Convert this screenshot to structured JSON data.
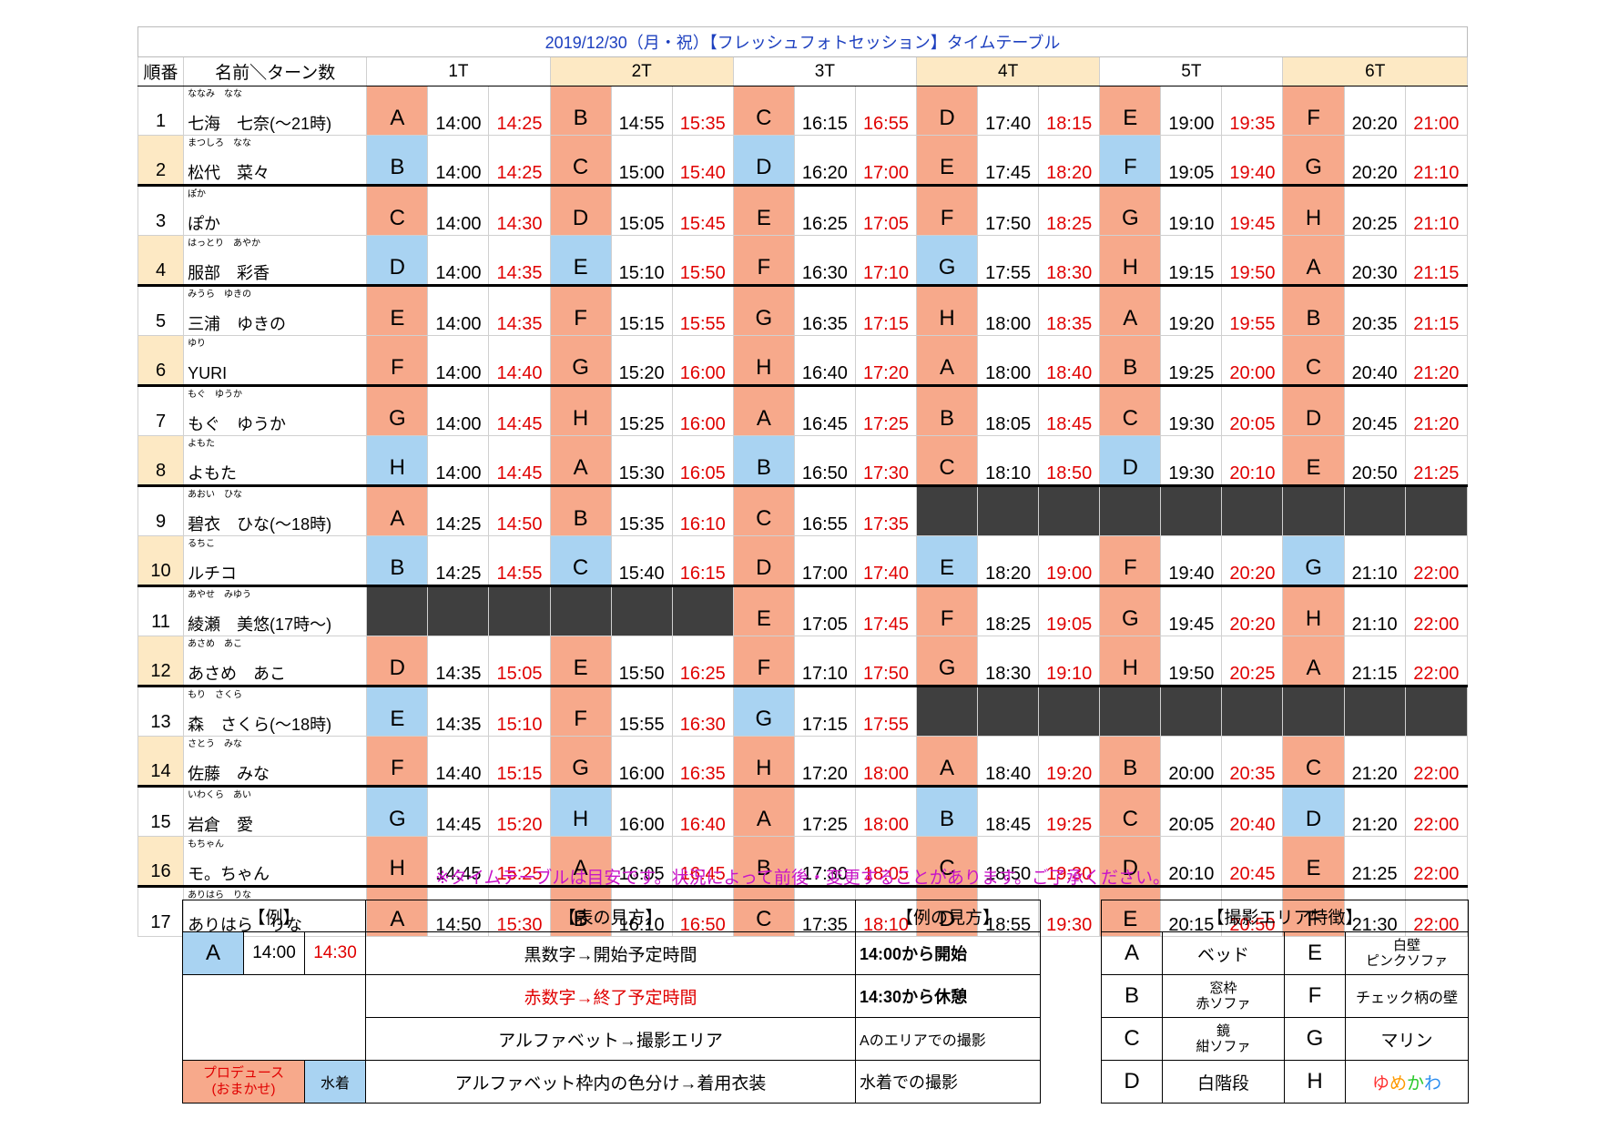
{
  "title": "2019/12/30（月・祝）【フレッシュフォトセッション】タイムテーブル",
  "header": {
    "no_label": "順番",
    "name_label": "名前＼ターン数",
    "turns": [
      "1T",
      "2T",
      "3T",
      "4T",
      "5T",
      "6T"
    ]
  },
  "colors": {
    "produce": "#f7a98b",
    "swim": "#a9d3f2",
    "blank": "#3f3f3f",
    "end_time": "#e00000",
    "title": "#1c3fbf",
    "note": "#c814c8",
    "turn_highlight": "#fde9c4"
  },
  "performers": [
    {
      "no": "1",
      "ruby": "ななみ　なな",
      "name": "七海　七奈(～21時)",
      "turns": [
        [
          "A",
          "p",
          "14:00",
          "14:25"
        ],
        [
          "B",
          "p",
          "14:55",
          "15:35"
        ],
        [
          "C",
          "p",
          "16:15",
          "16:55"
        ],
        [
          "D",
          "p",
          "17:40",
          "18:15"
        ],
        [
          "E",
          "p",
          "19:00",
          "19:35"
        ],
        [
          "F",
          "p",
          "20:20",
          "21:00"
        ]
      ]
    },
    {
      "no": "2",
      "ruby": "まつしろ　なな",
      "name": "松代　菜々",
      "turns": [
        [
          "B",
          "s",
          "14:00",
          "14:25"
        ],
        [
          "C",
          "p",
          "15:00",
          "15:40"
        ],
        [
          "D",
          "s",
          "16:20",
          "17:00"
        ],
        [
          "E",
          "p",
          "17:45",
          "18:20"
        ],
        [
          "F",
          "s",
          "19:05",
          "19:40"
        ],
        [
          "G",
          "p",
          "20:20",
          "21:10"
        ]
      ]
    },
    {
      "no": "3",
      "ruby": "ぽか",
      "name": "ぽか",
      "turns": [
        [
          "C",
          "p",
          "14:00",
          "14:30"
        ],
        [
          "D",
          "p",
          "15:05",
          "15:45"
        ],
        [
          "E",
          "p",
          "16:25",
          "17:05"
        ],
        [
          "F",
          "p",
          "17:50",
          "18:25"
        ],
        [
          "G",
          "p",
          "19:10",
          "19:45"
        ],
        [
          "H",
          "p",
          "20:25",
          "21:10"
        ]
      ]
    },
    {
      "no": "4",
      "ruby": "はっとり　あやか",
      "name": "服部　彩香",
      "turns": [
        [
          "D",
          "s",
          "14:00",
          "14:35"
        ],
        [
          "E",
          "s",
          "15:10",
          "15:50"
        ],
        [
          "F",
          "p",
          "16:30",
          "17:10"
        ],
        [
          "G",
          "s",
          "17:55",
          "18:30"
        ],
        [
          "H",
          "p",
          "19:15",
          "19:50"
        ],
        [
          "A",
          "p",
          "20:30",
          "21:15"
        ]
      ]
    },
    {
      "no": "5",
      "ruby": "みうら　ゆきの",
      "name": "三浦　ゆきの",
      "turns": [
        [
          "E",
          "p",
          "14:00",
          "14:35"
        ],
        [
          "F",
          "p",
          "15:15",
          "15:55"
        ],
        [
          "G",
          "p",
          "16:35",
          "17:15"
        ],
        [
          "H",
          "p",
          "18:00",
          "18:35"
        ],
        [
          "A",
          "p",
          "19:20",
          "19:55"
        ],
        [
          "B",
          "p",
          "20:35",
          "21:15"
        ]
      ]
    },
    {
      "no": "6",
      "ruby": "ゆり",
      "name": "YURI",
      "turns": [
        [
          "F",
          "p",
          "14:00",
          "14:40"
        ],
        [
          "G",
          "p",
          "15:20",
          "16:00"
        ],
        [
          "H",
          "p",
          "16:40",
          "17:20"
        ],
        [
          "A",
          "p",
          "18:00",
          "18:40"
        ],
        [
          "B",
          "p",
          "19:25",
          "20:00"
        ],
        [
          "C",
          "p",
          "20:40",
          "21:20"
        ]
      ]
    },
    {
      "no": "7",
      "ruby": "もぐ　ゆうか",
      "name": "もぐ　ゆうか",
      "turns": [
        [
          "G",
          "p",
          "14:00",
          "14:45"
        ],
        [
          "H",
          "p",
          "15:25",
          "16:00"
        ],
        [
          "A",
          "p",
          "16:45",
          "17:25"
        ],
        [
          "B",
          "p",
          "18:05",
          "18:45"
        ],
        [
          "C",
          "p",
          "19:30",
          "20:05"
        ],
        [
          "D",
          "p",
          "20:45",
          "21:20"
        ]
      ]
    },
    {
      "no": "8",
      "ruby": "よもた",
      "name": "よもた",
      "turns": [
        [
          "H",
          "s",
          "14:00",
          "14:45"
        ],
        [
          "A",
          "p",
          "15:30",
          "16:05"
        ],
        [
          "B",
          "s",
          "16:50",
          "17:30"
        ],
        [
          "C",
          "p",
          "18:10",
          "18:50"
        ],
        [
          "D",
          "s",
          "19:30",
          "20:10"
        ],
        [
          "E",
          "p",
          "20:50",
          "21:25"
        ]
      ]
    },
    {
      "no": "9",
      "ruby": "あおい　ひな",
      "name": "碧衣　ひな(～18時)",
      "turns": [
        [
          "A",
          "p",
          "14:25",
          "14:50"
        ],
        [
          "B",
          "p",
          "15:35",
          "16:10"
        ],
        [
          "C",
          "p",
          "16:55",
          "17:35"
        ],
        null,
        null,
        null
      ]
    },
    {
      "no": "10",
      "ruby": "るちこ",
      "name": "ルチコ",
      "turns": [
        [
          "B",
          "s",
          "14:25",
          "14:55"
        ],
        [
          "C",
          "s",
          "15:40",
          "16:15"
        ],
        [
          "D",
          "p",
          "17:00",
          "17:40"
        ],
        [
          "E",
          "s",
          "18:20",
          "19:00"
        ],
        [
          "F",
          "p",
          "19:40",
          "20:20"
        ],
        [
          "G",
          "s",
          "21:10",
          "22:00"
        ]
      ]
    },
    {
      "no": "11",
      "ruby": "あやせ　みゆう",
      "name": "綾瀬　美悠(17時～)",
      "turns": [
        null,
        null,
        [
          "E",
          "p",
          "17:05",
          "17:45"
        ],
        [
          "F",
          "p",
          "18:25",
          "19:05"
        ],
        [
          "G",
          "p",
          "19:45",
          "20:20"
        ],
        [
          "H",
          "p",
          "21:10",
          "22:00"
        ]
      ]
    },
    {
      "no": "12",
      "ruby": "あさめ　あこ",
      "name": "あさめ　あこ",
      "turns": [
        [
          "D",
          "p",
          "14:35",
          "15:05"
        ],
        [
          "E",
          "p",
          "15:50",
          "16:25"
        ],
        [
          "F",
          "p",
          "17:10",
          "17:50"
        ],
        [
          "G",
          "p",
          "18:30",
          "19:10"
        ],
        [
          "H",
          "p",
          "19:50",
          "20:25"
        ],
        [
          "A",
          "p",
          "21:15",
          "22:00"
        ]
      ]
    },
    {
      "no": "13",
      "ruby": "もり　さくら",
      "name": "森　さくら(～18時)",
      "turns": [
        [
          "E",
          "s",
          "14:35",
          "15:10"
        ],
        [
          "F",
          "p",
          "15:55",
          "16:30"
        ],
        [
          "G",
          "s",
          "17:15",
          "17:55"
        ],
        null,
        null,
        null
      ]
    },
    {
      "no": "14",
      "ruby": "さとう　みな",
      "name": "佐藤　みな",
      "turns": [
        [
          "F",
          "p",
          "14:40",
          "15:15"
        ],
        [
          "G",
          "p",
          "16:00",
          "16:35"
        ],
        [
          "H",
          "p",
          "17:20",
          "18:00"
        ],
        [
          "A",
          "p",
          "18:40",
          "19:20"
        ],
        [
          "B",
          "p",
          "20:00",
          "20:35"
        ],
        [
          "C",
          "p",
          "21:20",
          "22:00"
        ]
      ]
    },
    {
      "no": "15",
      "ruby": "いわくら　あい",
      "name": "岩倉　愛",
      "turns": [
        [
          "G",
          "s",
          "14:45",
          "15:20"
        ],
        [
          "H",
          "s",
          "16:00",
          "16:40"
        ],
        [
          "A",
          "p",
          "17:25",
          "18:00"
        ],
        [
          "B",
          "s",
          "18:45",
          "19:25"
        ],
        [
          "C",
          "p",
          "20:05",
          "20:40"
        ],
        [
          "D",
          "s",
          "21:20",
          "22:00"
        ]
      ]
    },
    {
      "no": "16",
      "ruby": "もちゃん",
      "name": "モ。ちゃん",
      "turns": [
        [
          "H",
          "p",
          "14:45",
          "15:25"
        ],
        [
          "A",
          "p",
          "16:05",
          "16:45"
        ],
        [
          "B",
          "p",
          "17:30",
          "18:05"
        ],
        [
          "C",
          "p",
          "18:50",
          "19:30"
        ],
        [
          "D",
          "p",
          "20:10",
          "20:45"
        ],
        [
          "E",
          "p",
          "21:25",
          "22:00"
        ]
      ]
    },
    {
      "no": "17",
      "ruby": "ありはら　りな",
      "name": "ありはら　りな",
      "turns": [
        [
          "A",
          "p",
          "14:50",
          "15:30"
        ],
        [
          "B",
          "p",
          "16:10",
          "16:50"
        ],
        [
          "C",
          "p",
          "17:35",
          "18:10"
        ],
        [
          "D",
          "p",
          "18:55",
          "19:30"
        ],
        [
          "E",
          "p",
          "20:15",
          "20:50"
        ],
        [
          "F",
          "p",
          "21:30",
          "22:00"
        ]
      ]
    }
  ],
  "note": "※タイムテーブルは目安です。状況によって前後・変更することがあります。ご了承ください。",
  "legend": {
    "example_label": "【例】",
    "howto_label": "【表の見方】",
    "example_howto_label": "【例の見方】",
    "example": {
      "area": "A",
      "start": "14:00",
      "end": "14:30"
    },
    "rows": [
      {
        "explain": "黒数字→開始予定時間",
        "example": "14:00から開始"
      },
      {
        "explain": "赤数字→終了予定時間",
        "example": "14:30から休憩"
      },
      {
        "explain": "アルファベット→撮影エリア",
        "example": "Aのエリアでの撮影"
      },
      {
        "explain": "アルファベット枠内の色分け→着用衣装",
        "example": "水着での撮影"
      }
    ],
    "produce_line1": "プロデュース",
    "produce_line2": "(おまかせ)",
    "swim": "水着"
  },
  "areas": {
    "label": "【撮影エリア特徴】",
    "items": [
      {
        "left_key": "A",
        "left_l1": "ベッド",
        "left_l2": "",
        "right_key": "E",
        "right_l1": "白壁",
        "right_l2": "ピンクソファ"
      },
      {
        "left_key": "B",
        "left_l1": "窓枠",
        "left_l2": "赤ソファ",
        "right_key": "F",
        "right_l1": "チェック柄の壁",
        "right_l2": ""
      },
      {
        "left_key": "C",
        "left_l1": "鏡",
        "left_l2": "紺ソファ",
        "right_key": "G",
        "right_l1": "マリン",
        "right_l2": ""
      },
      {
        "left_key": "D",
        "left_l1": "白階段",
        "left_l2": "",
        "right_key": "H",
        "right_l1": "ゆめかわ",
        "right_l2": ""
      }
    ]
  }
}
